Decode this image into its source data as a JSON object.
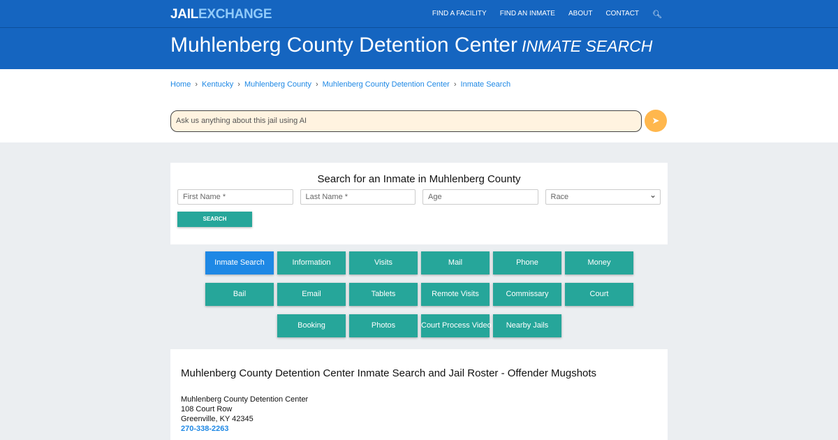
{
  "nav": {
    "logo_a": "JAIL",
    "logo_b": "EXCHANGE",
    "items": [
      "FIND A FACILITY",
      "FIND AN INMATE",
      "ABOUT",
      "CONTACT"
    ],
    "search_icon": "search-icon"
  },
  "hero": {
    "title": "Muhlenberg County Detention Center",
    "subtitle": "INMATE SEARCH"
  },
  "breadcrumb": [
    "Home",
    "Kentucky",
    "Muhlenberg County",
    "Muhlenberg County Detention Center",
    "Inmate Search"
  ],
  "ai": {
    "placeholder": "Ask us anything about this jail using AI",
    "send_icon": "paper-plane-icon"
  },
  "search": {
    "title": "Search for an Inmate in Muhlenberg County",
    "first": "First Name *",
    "last": "Last Name *",
    "age": "Age",
    "race": "Race",
    "button": "SEARCH"
  },
  "buttons": [
    "Inmate Search",
    "Information",
    "Visits",
    "Mail",
    "Phone",
    "Money",
    "Bail",
    "Email",
    "Tablets",
    "Remote Visits",
    "Commissary",
    "Court",
    "Booking",
    "Photos",
    "Court Process Video",
    "Nearby Jails"
  ],
  "info": {
    "heading": "Muhlenberg County Detention Center Inmate Search and Jail Roster - Offender Mugshots",
    "name": "Muhlenberg County Detention Center",
    "street": "108 Court Row",
    "city": "Greenville, KY 42345",
    "phone": "270-338-2263"
  },
  "colors": {
    "brand": "#1565c0",
    "teal": "#26a69a",
    "active": "#1e88e5"
  }
}
